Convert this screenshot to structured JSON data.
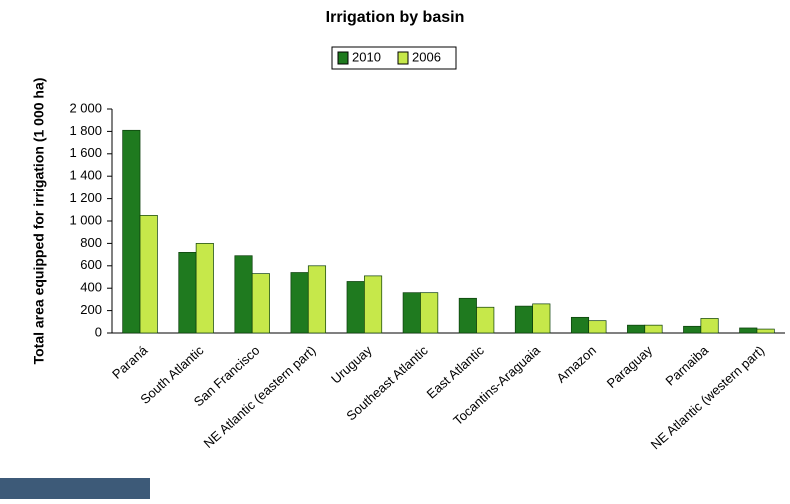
{
  "chart_data": {
    "type": "bar",
    "title": "Irrigation by basin",
    "y_label": "Total area equipped for irrigation (1 000 ha)",
    "categories": [
      "Paraná",
      "South Atlantic",
      "San Francisco",
      "NE Atlantic (eastern part)",
      "Uruguay",
      "Southeast Atlantic",
      "East Atlantic",
      "Tocantins-Araguaia",
      "Amazon",
      "Paraguay",
      "Parnaiba",
      "NE Atlantic (western part)"
    ],
    "series": [
      {
        "name": "2010",
        "color": "#1f7a1f",
        "values": [
          1810,
          720,
          690,
          540,
          460,
          360,
          310,
          240,
          140,
          70,
          60,
          45
        ]
      },
      {
        "name": "2006",
        "color": "#c6e84a",
        "values": [
          1050,
          800,
          530,
          600,
          510,
          360,
          230,
          260,
          110,
          70,
          130,
          35
        ]
      }
    ],
    "ylim": [
      0,
      2000
    ],
    "yticks": [
      0,
      200,
      400,
      600,
      800,
      {
        "value": 1000,
        "label": "1 000"
      },
      {
        "value": 1200,
        "label": "1 200"
      },
      {
        "value": 1400,
        "label": "1 400"
      },
      {
        "value": 1600,
        "label": "1 600"
      },
      {
        "value": 1800,
        "label": "1 800"
      },
      {
        "value": 2000,
        "label": "2 000"
      }
    ],
    "grid": false,
    "legend": "top"
  }
}
